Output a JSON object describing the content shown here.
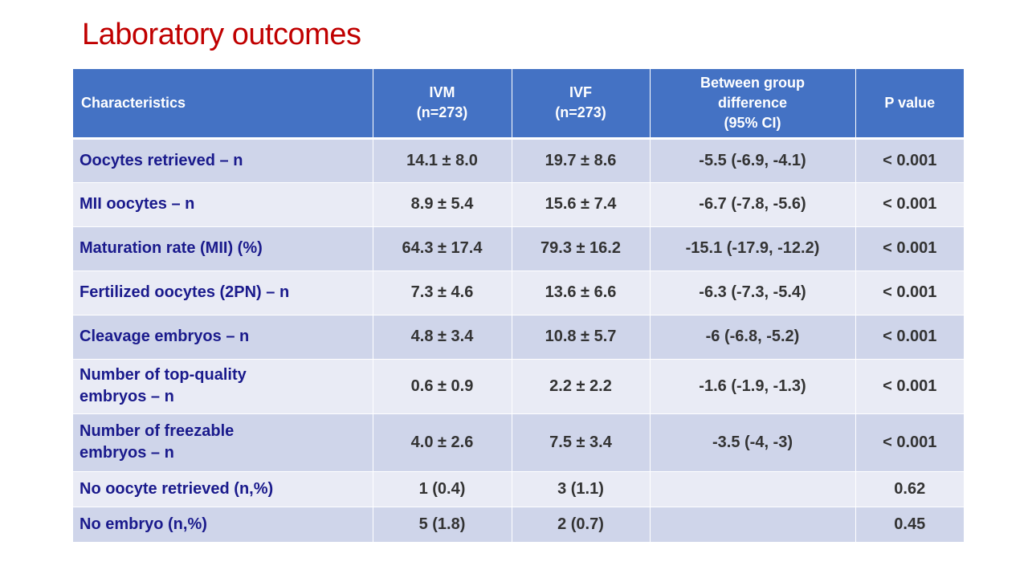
{
  "slide": {
    "title": "Laboratory outcomes"
  },
  "table": {
    "headers": {
      "characteristics": "Characteristics",
      "ivm_line1": "IVM",
      "ivm_line2": "(n=273)",
      "ivf_line1": "IVF",
      "ivf_line2": "(n=273)",
      "diff_line1": "Between group",
      "diff_line2": "difference",
      "diff_line3": "(95% CI)",
      "p_value": "P value"
    },
    "rows": [
      {
        "label": "Oocytes retrieved – n",
        "ivm": "14.1 ± 8.0",
        "ivf": "19.7 ± 8.6",
        "diff": "-5.5 (-6.9, -4.1)",
        "p": "< 0.001"
      },
      {
        "label": "MII oocytes – n",
        "ivm": "8.9 ± 5.4",
        "ivf": "15.6 ± 7.4",
        "diff": "-6.7 (-7.8, -5.6)",
        "p": "< 0.001"
      },
      {
        "label": "Maturation rate (MII) (%)",
        "ivm": "64.3 ± 17.4",
        "ivf": "79.3 ± 16.2",
        "diff": "-15.1 (-17.9, -12.2)",
        "p": "< 0.001"
      },
      {
        "label": "Fertilized oocytes (2PN) – n",
        "ivm": "7.3 ± 4.6",
        "ivf": "13.6 ± 6.6",
        "diff": "-6.3 (-7.3, -5.4)",
        "p": "< 0.001"
      },
      {
        "label": "Cleavage embryos – n",
        "ivm": "4.8 ± 3.4",
        "ivf": "10.8 ± 5.7",
        "diff": "-6 (-6.8, -5.2)",
        "p": "< 0.001"
      },
      {
        "label_line1": "Number of top-quality",
        "label_line2": "embryos – n",
        "ivm": "0.6 ± 0.9",
        "ivf": "2.2 ± 2.2",
        "diff": "-1.6 (-1.9, -1.3)",
        "p": "< 0.001"
      },
      {
        "label_line1": "Number of freezable",
        "label_line2": "embryos – n",
        "ivm": "4.0 ± 2.6",
        "ivf": "7.5 ± 3.4",
        "diff": "-3.5 (-4, -3)",
        "p": "< 0.001"
      },
      {
        "label": "No oocyte retrieved (n,%)",
        "ivm": "1 (0.4)",
        "ivf": "3 (1.1)",
        "diff": "",
        "p": "0.62"
      },
      {
        "label": "No embryo  (n,%)",
        "ivm": "5 (1.8)",
        "ivf": "2 (0.7)",
        "diff": "",
        "p": "0.45"
      }
    ]
  }
}
